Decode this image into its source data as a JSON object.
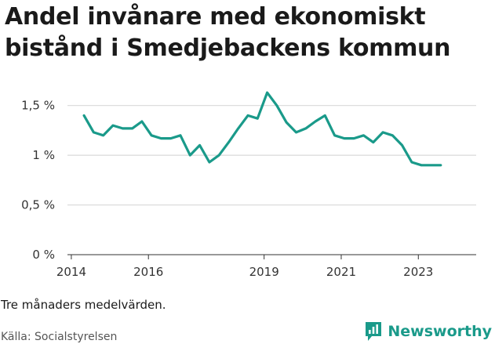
{
  "title": "Andel invånare med ekonomiskt bistånd i Smedjebackens kommun",
  "note": "Tre månaders medelvärden.",
  "source": "Källa: Socialstyrelsen",
  "brand": {
    "name": "Newsworthy"
  },
  "colors": {
    "line": "#1a9a8a",
    "grid": "#d9d9d9",
    "brand": "#1a9a8a"
  },
  "chart_data": {
    "type": "line",
    "title": "Andel invånare med ekonomiskt bistånd i Smedjebackens kommun",
    "xlabel": "",
    "ylabel": "",
    "ylim": [
      0,
      1.6
    ],
    "xlim": [
      2013.9,
      2024.5
    ],
    "grid": true,
    "yticks": [
      {
        "value": 0,
        "label": "0 %"
      },
      {
        "value": 0.5,
        "label": "0,5 %"
      },
      {
        "value": 1,
        "label": "1 %"
      },
      {
        "value": 1.5,
        "label": "1,5 %"
      }
    ],
    "xticks": [
      {
        "value": 2014,
        "label": "2014"
      },
      {
        "value": 2016,
        "label": "2016"
      },
      {
        "value": 2019,
        "label": "2019"
      },
      {
        "value": 2021,
        "label": "2021"
      },
      {
        "value": 2023,
        "label": "2023"
      }
    ],
    "series": [
      {
        "x": [
          2014.33,
          2014.58,
          2014.83,
          2015.08,
          2015.33,
          2015.58,
          2015.83,
          2016.08,
          2016.33,
          2016.58,
          2016.83,
          2017.08,
          2017.33,
          2017.58,
          2017.83,
          2018.08,
          2018.33,
          2018.58,
          2018.83,
          2019.08,
          2019.33,
          2019.58,
          2019.83,
          2020.08,
          2020.33,
          2020.58,
          2020.83,
          2021.08,
          2021.33,
          2021.58,
          2021.83,
          2022.08,
          2022.33,
          2022.58,
          2022.83,
          2023.08,
          2023.33,
          2023.58
        ],
        "values": [
          1.4,
          1.23,
          1.2,
          1.3,
          1.27,
          1.27,
          1.34,
          1.2,
          1.17,
          1.17,
          1.2,
          1.0,
          1.1,
          0.93,
          1.0,
          1.13,
          1.27,
          1.4,
          1.37,
          1.63,
          1.5,
          1.33,
          1.23,
          1.27,
          1.34,
          1.4,
          1.2,
          1.17,
          1.17,
          1.2,
          1.13,
          1.23,
          1.2,
          1.1,
          0.93,
          0.9,
          0.9,
          0.9
        ]
      }
    ]
  }
}
